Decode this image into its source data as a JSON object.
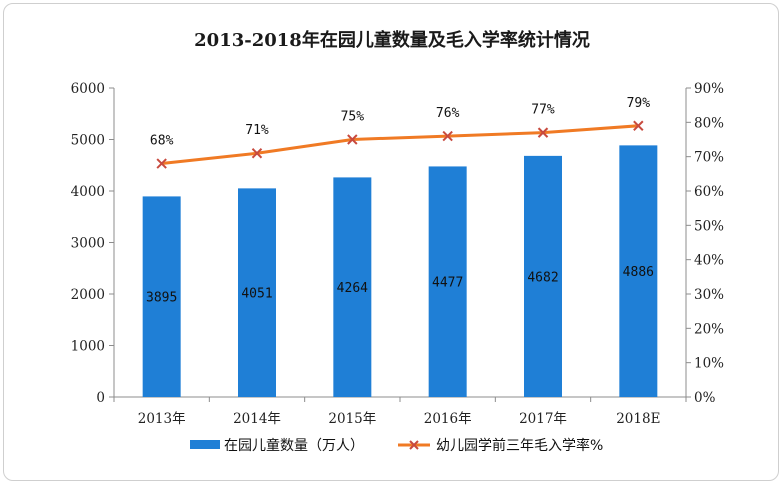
{
  "chart_data": {
    "type": "bar",
    "title": "2013-2018年在园儿童数量及毛入学率统计情况",
    "categories": [
      "2013年",
      "2014年",
      "2015年",
      "2016年",
      "2017年",
      "2018E"
    ],
    "series": [
      {
        "name": "在园儿童数量（万人）",
        "type": "bar",
        "axis": "left",
        "color": "#1f7fd6",
        "values": [
          3895,
          4051,
          4264,
          4477,
          4682,
          4886
        ],
        "labels": [
          "3895",
          "4051",
          "4264",
          "4477",
          "4682",
          "4886"
        ]
      },
      {
        "name": "幼儿园学前三年毛入学率%",
        "type": "line",
        "axis": "right",
        "color": "#f07a24",
        "marker_color": "#c84a3e",
        "values": [
          68,
          71,
          75,
          76,
          77,
          79
        ],
        "labels": [
          "68%",
          "71%",
          "75%",
          "76%",
          "77%",
          "79%"
        ]
      }
    ],
    "y_left": {
      "min": 0,
      "max": 6000,
      "ticks": [
        "0",
        "1000",
        "2000",
        "3000",
        "4000",
        "5000",
        "6000"
      ]
    },
    "y_right": {
      "min": 0,
      "max": 90,
      "ticks": [
        "0%",
        "10%",
        "20%",
        "30%",
        "40%",
        "50%",
        "60%",
        "70%",
        "80%",
        "90%"
      ]
    },
    "grid": false,
    "legend_position": "bottom"
  }
}
